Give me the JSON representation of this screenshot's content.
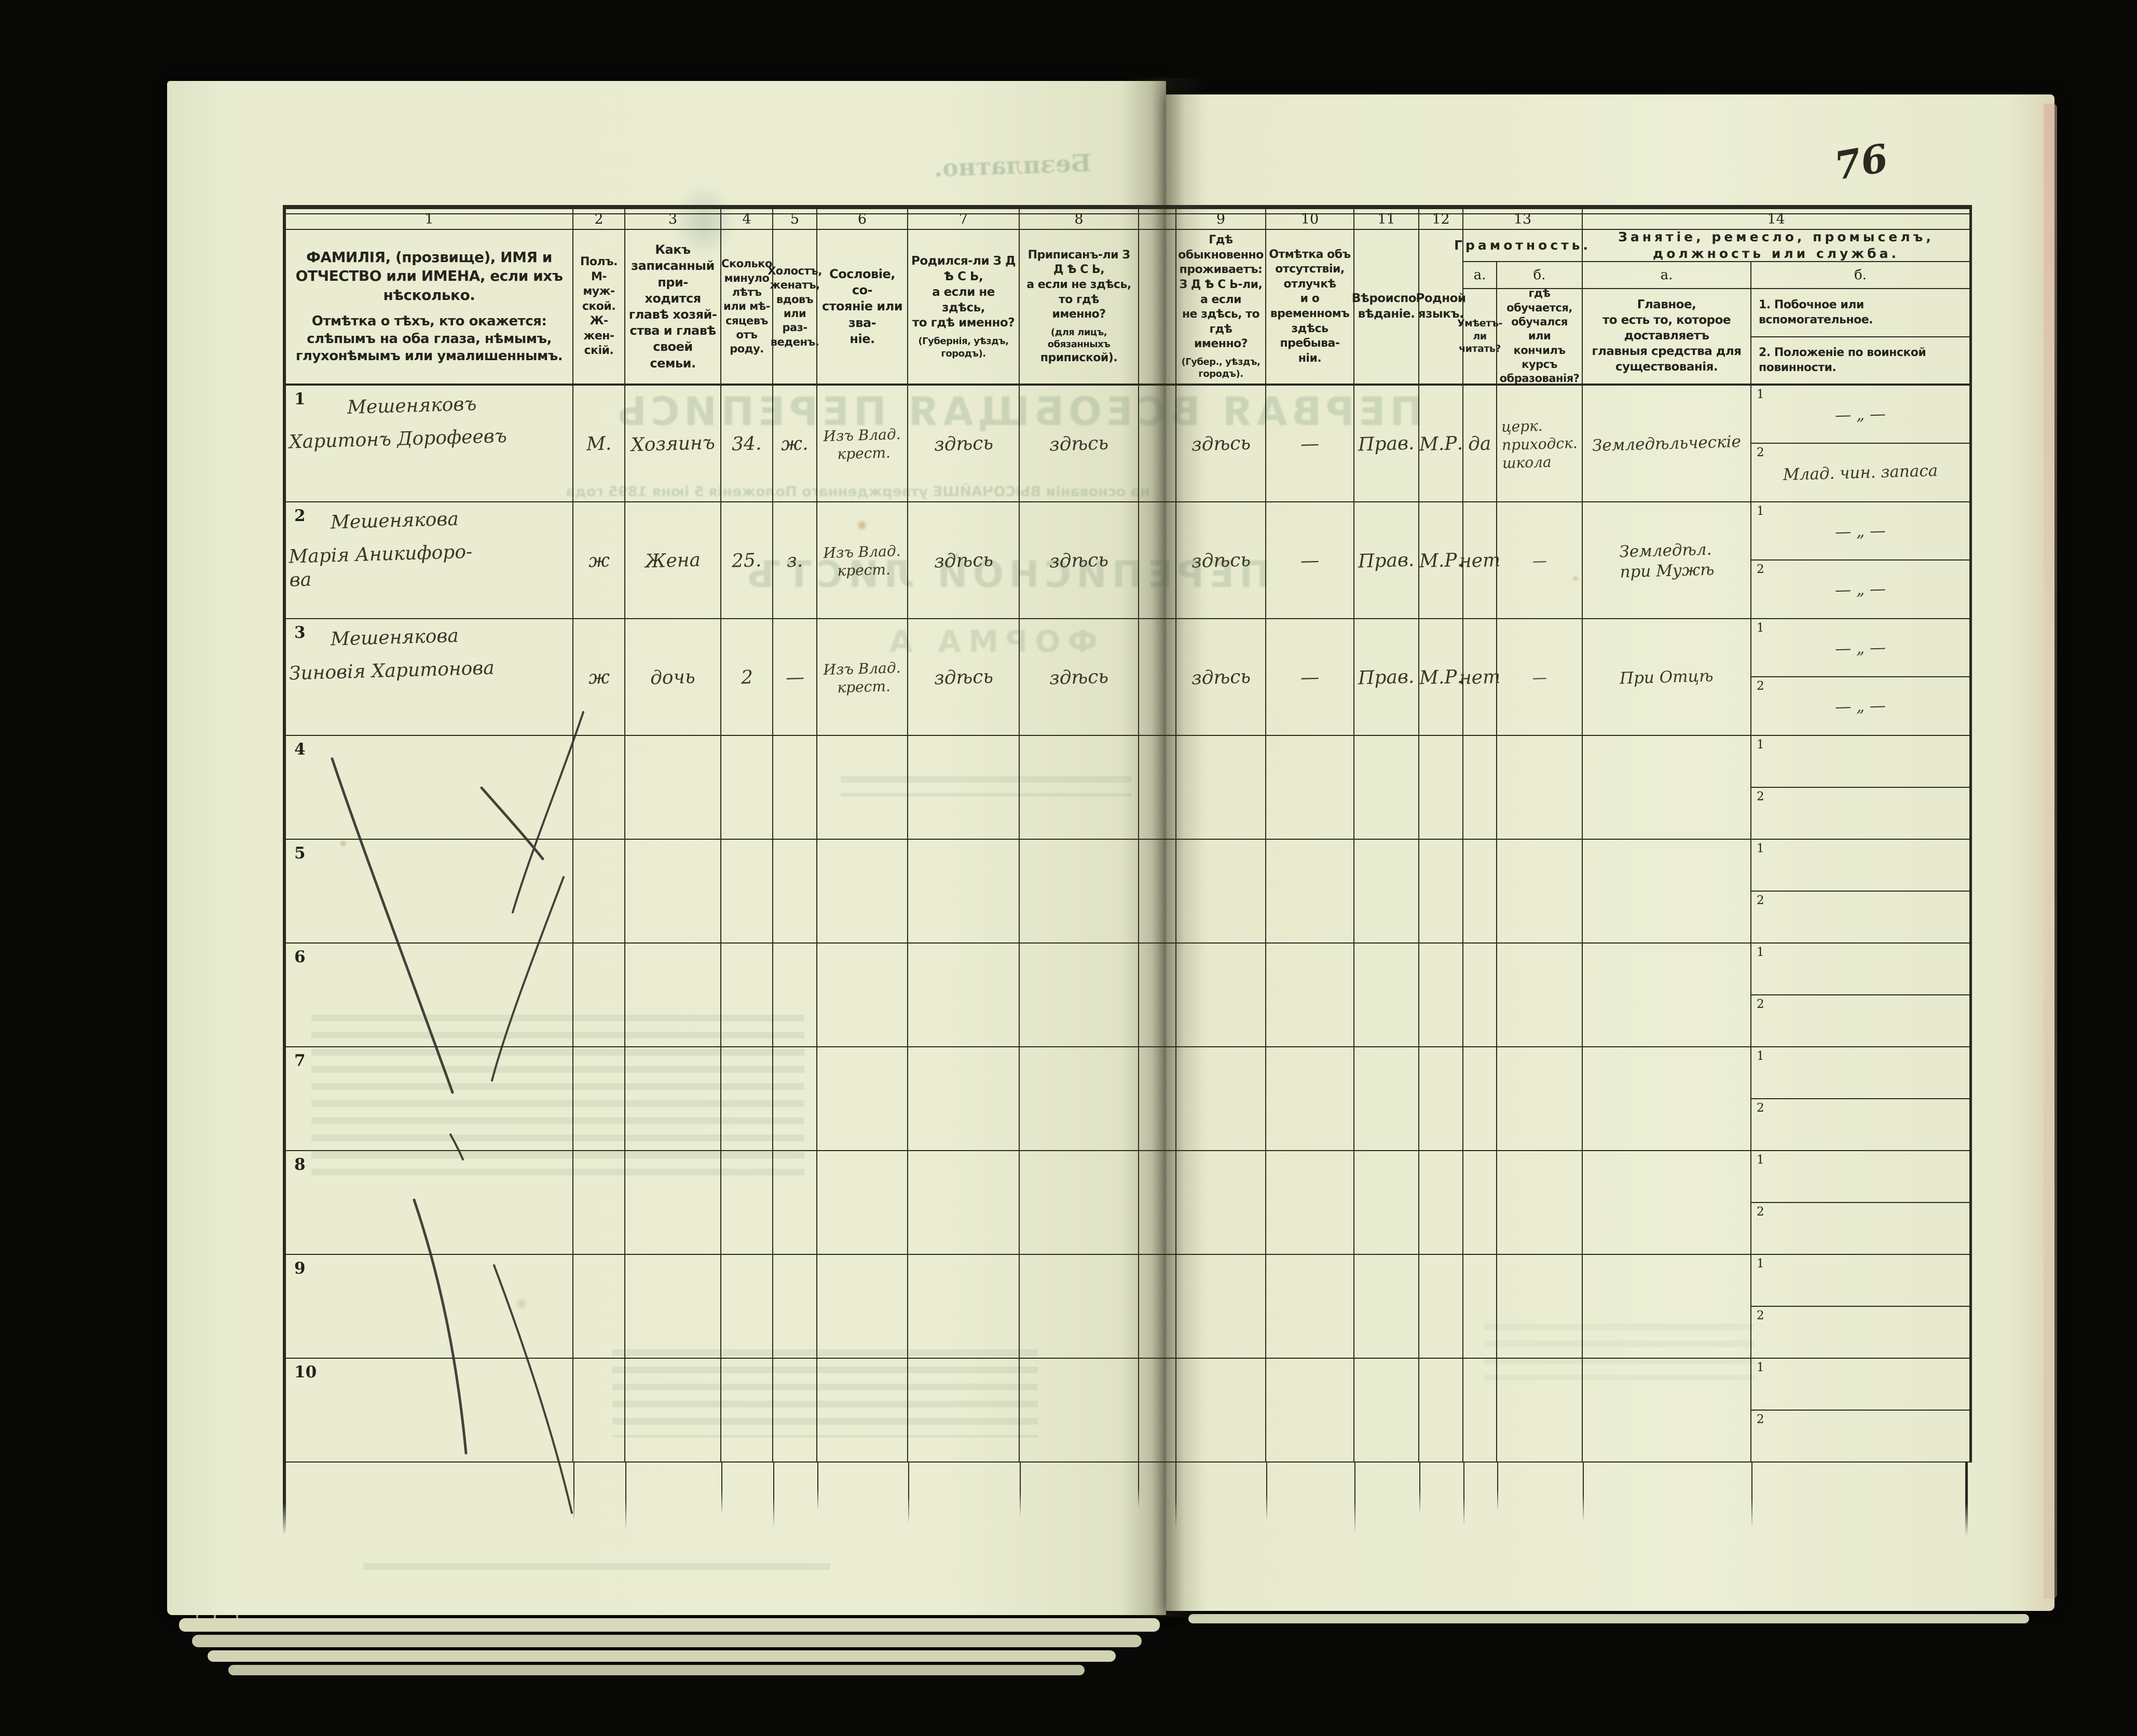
{
  "page_number": "76",
  "table": {
    "numbers": [
      "1",
      "2",
      "3",
      "4",
      "5",
      "6",
      "7",
      "8",
      "9",
      "10",
      "11",
      "12",
      "13",
      "14"
    ],
    "headers": {
      "c1a": "ФАМИЛІЯ, (прозвище), ИМЯ и ОТЧЕСТВО или ИМЕНА, если ихъ нѣсколько.",
      "c1b": "Отмѣтка о тѣхъ, кто окажется: слѣпымъ на оба глаза, нѣмымъ, глухонѣмымъ или умалишеннымъ.",
      "c2": "Полъ.\nМ-муж-\nской.\nЖ-жен-\nскій.",
      "c3": "Какъ записанный при-\nходится главѣ хозяй-\nства и главѣ своей\nсемьи.",
      "c4": "Сколько\nминуло\nлѣтъ\nили мѣ-\nсяцевъ\nотъ роду.",
      "c5": "Холостъ,\nженатъ,\nвдовъ\nили раз-\nведенъ.",
      "c6": "Сословіе, со-\nстояніе или зва-\nніе.",
      "c7": "Родился-ли З Д Ѣ С Ь,\nа если не здѣсь,\nто гдѣ именно?\n(Губернія, уѣздъ, городъ).",
      "c8": "Приписанъ-ли З Д Ѣ С Ь,\nа если не здѣсь, то гдѣ\nименно?\n(для лицъ, обязанныхъ\nприпиской).",
      "c9": "Гдѣ обыкновенно\nпроживаетъ:\nЗ Д Ѣ С Ь-ли, а если\nне здѣсь, то гдѣ\nименно?\n(Губер., уѣздъ, городъ).",
      "c10": "Отмѣтка объ\nотсутствіи, отлучкѣ\nи о временномъ\nздѣсь пребыва-\nніи.",
      "c11": "Вѣроиспо-\nвѣданіе.",
      "c12": "Родной\nязыкъ.",
      "c13": "Грамотность.",
      "c13a_label": "а.",
      "c13b_label": "б.",
      "c13a": "Умѣетъ-\nли\nчитать?",
      "c13b": "гдѣ обучается,\nобучался или\nкончилъ курсъ\nобразованія?",
      "c14": "Занятіе, ремесло, промыселъ, должность или служба.",
      "c14a_label": "а.",
      "c14b_label": "б.",
      "c14a": "Главное,\nто есть то, которое доставляетъ\nглавныя средства для существованія.",
      "c14b1": "1. Побочное или вспомогательное.",
      "c14b2": "2. Положеніе по воинской повинности.",
      "sub1": "1",
      "sub2": "2"
    },
    "rows": [
      {
        "num": "1",
        "surname": "Мешеняковъ",
        "name": "Харитонъ Дорофеевъ",
        "sex": "М.",
        "relation": "Хозяинъ",
        "age": "34.",
        "marital": "ж.",
        "estate": "Изъ Влад.\nкрест.",
        "born": "здѣсь",
        "registered": "здѣсь",
        "resides": "здѣсь",
        "absence": "—",
        "religion": "Прав.",
        "language": "М.Р.",
        "literate": "да",
        "education": "церк.\nприходск.\nшкола",
        "occupation": "Земледѣльческіе",
        "side_occupation": "— „ —",
        "military": "Млад. чин. запаса"
      },
      {
        "num": "2",
        "surname": "Мешенякова",
        "name": "Марія Аникифоро-\nва",
        "sex": "ж",
        "relation": "Жена",
        "age": "25.",
        "marital": "з.",
        "estate": "Изъ Влад.\nкрест.",
        "born": "здѣсь",
        "registered": "здѣсь",
        "resides": "здѣсь",
        "absence": "—",
        "religion": "Прав.",
        "language": "М.Р.",
        "literate": "нет",
        "education": "—",
        "occupation": "Земледѣл.\nпри Мужѣ",
        "side_occupation": "— „ —",
        "military": "— „ —"
      },
      {
        "num": "3",
        "surname": "Мешенякова",
        "name": "Зиновія Харитонова",
        "sex": "ж",
        "relation": "дочь",
        "age": "2",
        "marital": "—",
        "estate": "Изъ Влад.\nкрест.",
        "born": "здѣсь",
        "registered": "здѣсь",
        "resides": "здѣсь",
        "absence": "—",
        "religion": "Прав.",
        "language": "М.Р.",
        "literate": "нет",
        "education": "—",
        "occupation": "При Отцѣ",
        "side_occupation": "— „ —",
        "military": "— „ —"
      },
      {
        "num": "4"
      },
      {
        "num": "5"
      },
      {
        "num": "6"
      },
      {
        "num": "7"
      },
      {
        "num": "8"
      },
      {
        "num": "9"
      },
      {
        "num": "10"
      }
    ]
  },
  "ghosts": {
    "free_note": "Безплатно.",
    "title_line": "ПЕРВАЯ ВСЕОБЩАЯ ПЕРЕПИСЬ",
    "subtitle_line": "на основаніи ВЫСОЧАЙШЕ утвержденнаго Положенія 5 іюня 1895 года",
    "sheet_line": "ПЕРЕПИСНОЙ ЛИСТЪ",
    "form_line": "ФОРМА А"
  }
}
